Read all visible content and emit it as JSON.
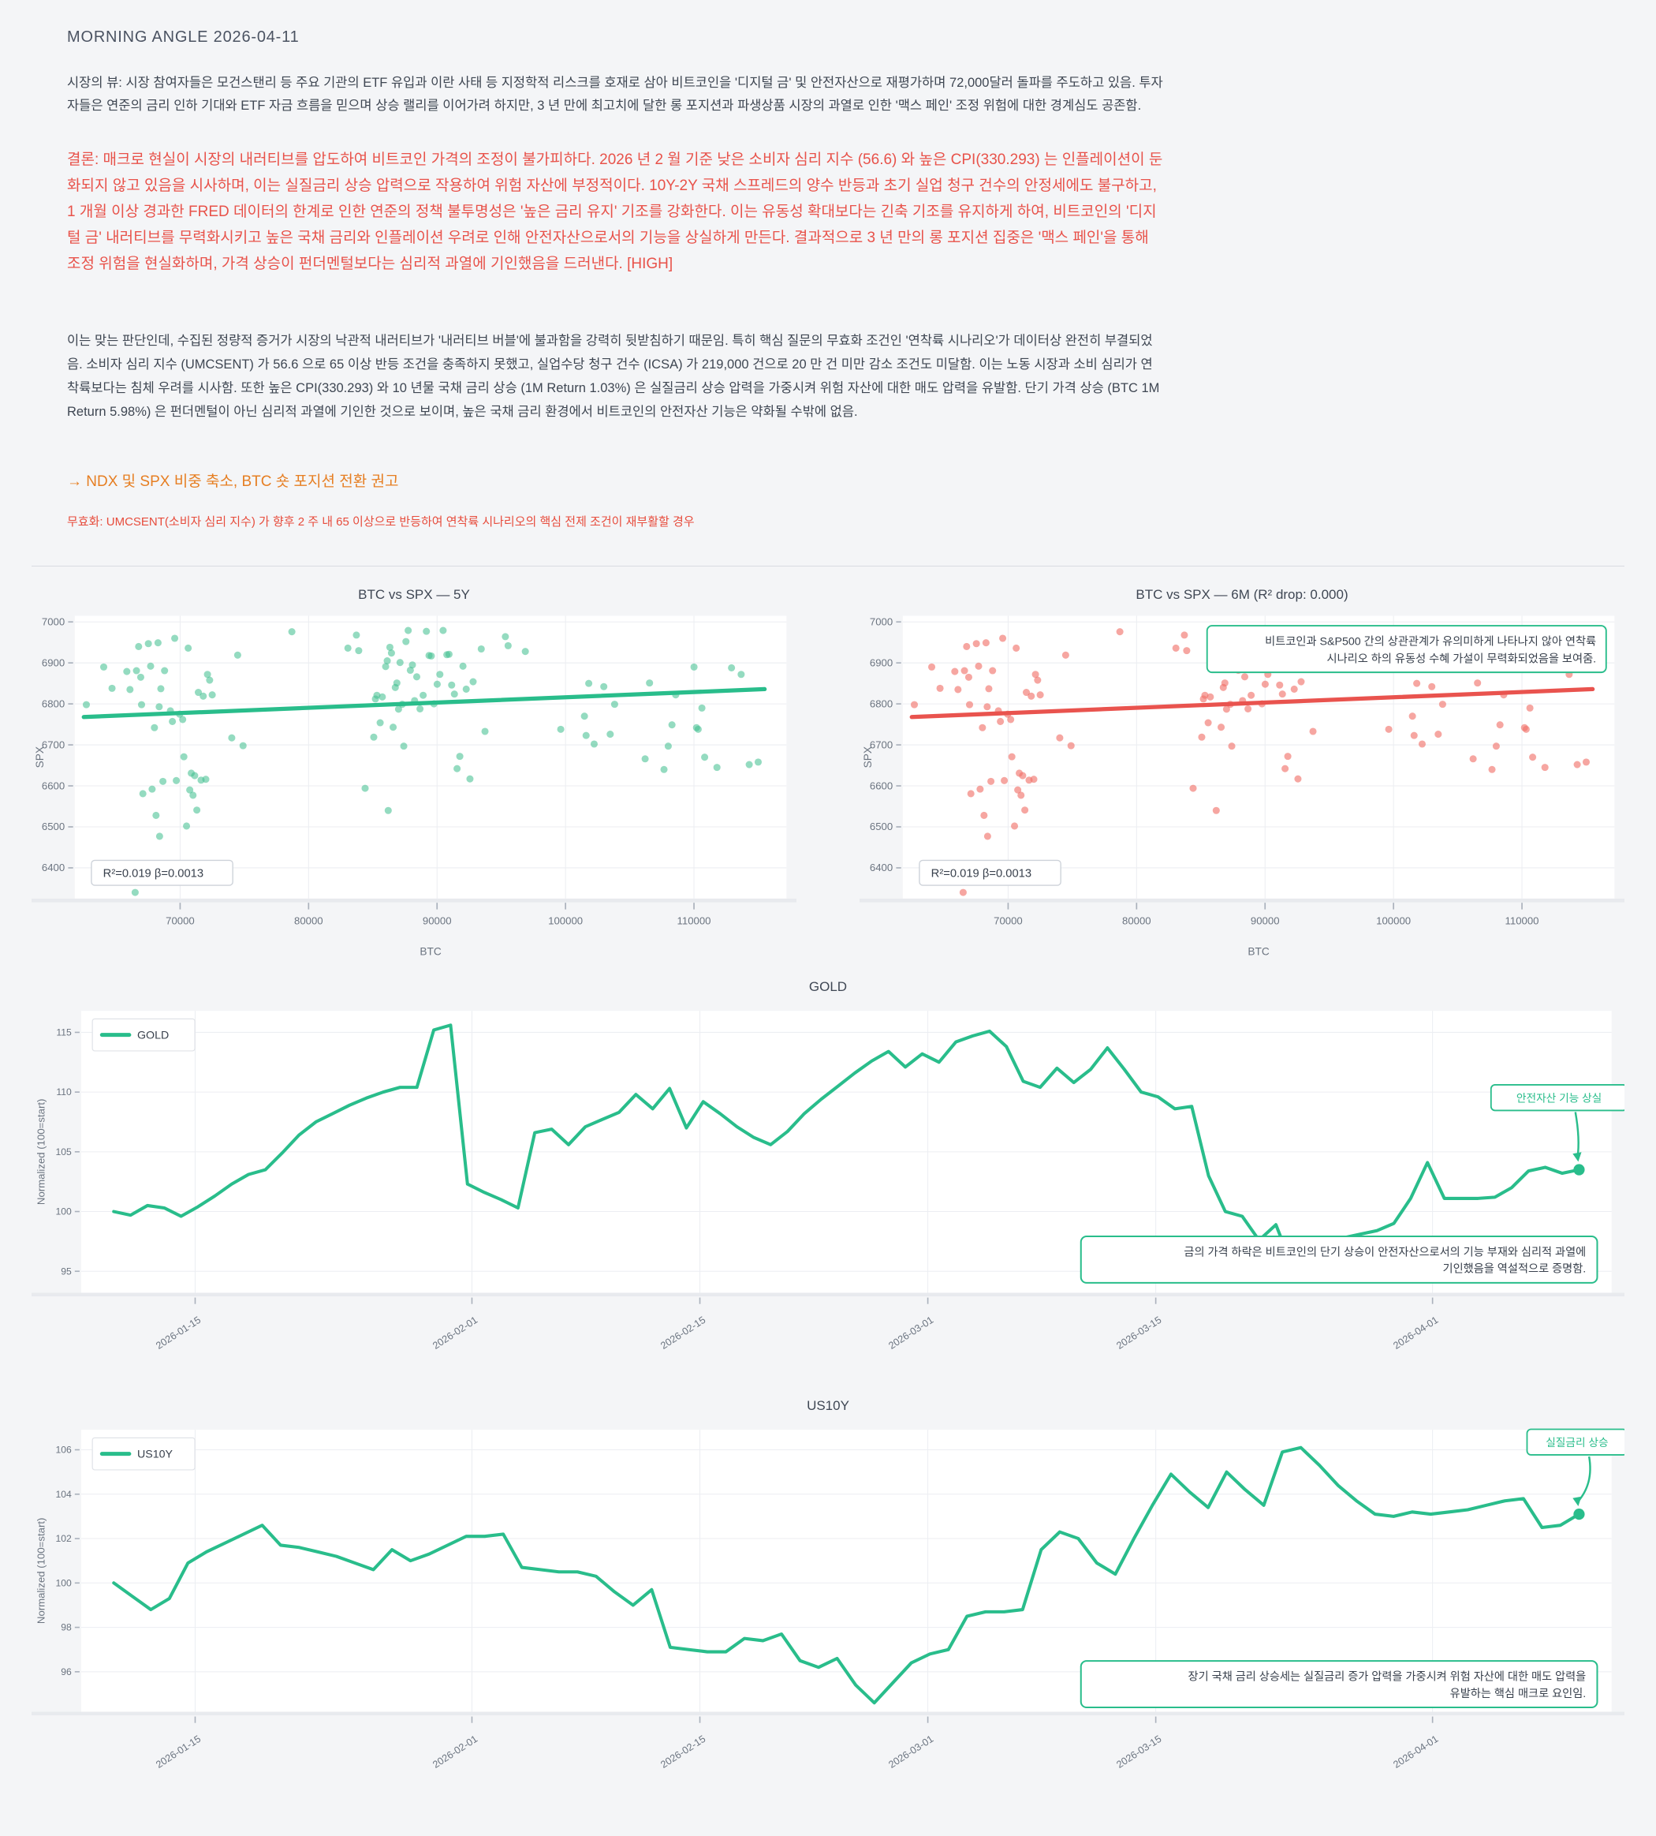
{
  "header": {
    "title": "MORNING ANGLE  2026-04-11"
  },
  "report": {
    "market_view": "시장의 뷰: 시장 참여자들은 모건스탠리 등 주요 기관의 ETF 유입과 이란 사태 등 지정학적 리스크를 호재로 삼아 비트코인을 '디지털 금' 및 안전자산으로 재평가하며 72,000달러 돌파를 주도하고 있음. 투자자들은 연준의 금리 인하 기대와 ETF 자금 흐름을 믿으며 상승 랠리를 이어가려 하지만, 3 년 만에 최고치에 달한 롱 포지션과 파생상품 시장의 과열로 인한 '맥스 페인' 조정 위험에 대한 경계심도 공존함.",
    "conclusion": "결론: 매크로 현실이 시장의 내러티브를 압도하여 비트코인 가격의 조정이 불가피하다. 2026 년 2 월 기준 낮은 소비자 심리 지수 (56.6) 와 높은 CPI(330.293) 는 인플레이션이 둔화되지 않고 있음을 시사하며, 이는 실질금리 상승 압력으로 작용하여 위험 자산에 부정적이다. 10Y-2Y 국채 스프레드의 양수 반등과 초기 실업 청구 건수의 안정세에도 불구하고, 1 개월 이상 경과한 FRED 데이터의 한계로 인한 연준의 정책 불투명성은 '높은 금리 유지' 기조를 강화한다. 이는 유동성 확대보다는 긴축 기조를 유지하게 하여, 비트코인의 '디지털 금' 내러티브를 무력화시키고 높은 국채 금리와 인플레이션 우려로 인해 안전자산으로서의 기능을 상실하게 만든다. 결과적으로 3 년 만의 롱 포지션 집중은 '맥스 페인'을 통해 조정 위험을 현실화하며, 가격 상승이 펀더멘털보다는 심리적 과열에 기인했음을 드러낸다.  [HIGH]",
    "analysis": "이는 맞는 판단인데, 수집된 정량적 증거가 시장의 낙관적 내러티브가 '내러티브 버블'에 불과함을 강력히 뒷받침하기 때문임. 특히 핵심 질문의 무효화 조건인 '연착륙 시나리오'가 데이터상 완전히 부결되었음. 소비자 심리 지수 (UMCSENT) 가 56.6 으로 65 이상 반등 조건을 충족하지 못했고, 실업수당 청구 건수 (ICSA) 가 219,000 건으로 20 만 건 미만 감소 조건도 미달함. 이는 노동 시장과 소비 심리가 연착륙보다는 침체 우려를 시사함. 또한 높은 CPI(330.293) 와 10 년물 국채 금리 상승 (1M Return 1.03%) 은 실질금리 상승 압력을 가중시켜 위험 자산에 대한 매도 압력을 유발함. 단기 가격 상승 (BTC 1M Return 5.98%) 은 펀더멘털이 아닌 심리적 과열에 기인한 것으로 보이며, 높은 국채 금리 환경에서 비트코인의 안전자산 기능은 약화될 수밖에 없음.",
    "recommendation": "→ NDX 및 SPX 비중 축소, BTC 숏 포지션 전환 권고",
    "invalidation": "무효화: UMCSENT(소비자 심리 지수) 가 향후 2 주 내 65 이상으로 반등하여 연착륙 시나리오의 핵심 전제 조건이 재부활할 경우"
  },
  "colors": {
    "green": "#29bd8b",
    "green_fill": "rgba(61,189,141,0.55)",
    "red": "#e9534e",
    "red_fill": "rgba(240,112,104,0.62)",
    "grid": "#eceef2",
    "tick": "#aab1bc",
    "label": "#6b7480",
    "text": "#39414d",
    "axis_band": "#e8eaee"
  },
  "chart_data": [
    {
      "type": "scatter",
      "title": "BTC vs SPX — 5Y",
      "xlabel": "BTC",
      "ylabel": "SPX",
      "xlim": [
        61800,
        117200
      ],
      "ylim": [
        6325,
        7015
      ],
      "xticks": [
        70000,
        80000,
        90000,
        100000,
        110000
      ],
      "yticks": [
        6400,
        6500,
        6600,
        6700,
        6800,
        6900,
        7000
      ],
      "stats_label": "R²=0.019  β=0.0013",
      "series_color": "green",
      "trend": {
        "x": [
          62500,
          115500
        ],
        "y": [
          6768,
          6836
        ]
      },
      "points": [
        [
          62700,
          6798
        ],
        [
          64050,
          6890
        ],
        [
          64700,
          6838
        ],
        [
          65850,
          6879
        ],
        [
          66100,
          6835
        ],
        [
          66600,
          6881
        ],
        [
          66770,
          6940
        ],
        [
          66930,
          6865
        ],
        [
          67000,
          6798
        ],
        [
          67100,
          6581
        ],
        [
          67530,
          6947
        ],
        [
          67700,
          6892
        ],
        [
          67820,
          6592
        ],
        [
          68000,
          6742
        ],
        [
          68120,
          6528
        ],
        [
          68280,
          6949
        ],
        [
          68370,
          6793
        ],
        [
          68400,
          6477
        ],
        [
          68500,
          6837
        ],
        [
          68660,
          6611
        ],
        [
          68790,
          6881
        ],
        [
          69240,
          6783
        ],
        [
          69400,
          6757
        ],
        [
          69580,
          6960
        ],
        [
          69700,
          6613
        ],
        [
          69960,
          6775
        ],
        [
          70200,
          6762
        ],
        [
          70290,
          6671
        ],
        [
          70500,
          6502
        ],
        [
          70630,
          6936
        ],
        [
          70750,
          6590
        ],
        [
          70870,
          6631
        ],
        [
          71000,
          6577
        ],
        [
          71130,
          6625
        ],
        [
          71300,
          6541
        ],
        [
          71420,
          6828
        ],
        [
          71630,
          6614
        ],
        [
          71800,
          6819
        ],
        [
          72000,
          6616
        ],
        [
          72130,
          6872
        ],
        [
          72300,
          6858
        ],
        [
          72500,
          6822
        ],
        [
          74020,
          6717
        ],
        [
          74480,
          6919
        ],
        [
          74900,
          6698
        ],
        [
          78700,
          6976
        ],
        [
          83060,
          6936
        ],
        [
          83720,
          6968
        ],
        [
          83900,
          6930
        ],
        [
          84400,
          6594
        ],
        [
          85070,
          6719
        ],
        [
          85200,
          6812
        ],
        [
          85320,
          6821
        ],
        [
          85570,
          6754
        ],
        [
          85740,
          6817
        ],
        [
          86000,
          6891
        ],
        [
          86120,
          6905
        ],
        [
          86200,
          6540
        ],
        [
          86330,
          6938
        ],
        [
          86450,
          6924
        ],
        [
          86580,
          6743
        ],
        [
          86750,
          6840
        ],
        [
          86870,
          6851
        ],
        [
          87000,
          6787
        ],
        [
          87120,
          6901
        ],
        [
          87290,
          6799
        ],
        [
          87410,
          6697
        ],
        [
          87580,
          6952
        ],
        [
          87750,
          6979
        ],
        [
          87920,
          6882
        ],
        [
          88080,
          6895
        ],
        [
          88250,
          6808
        ],
        [
          88420,
          6866
        ],
        [
          88670,
          6788
        ],
        [
          88920,
          6821
        ],
        [
          89170,
          6977
        ],
        [
          89380,
          6918
        ],
        [
          89550,
          6917
        ],
        [
          89760,
          6800
        ],
        [
          90010,
          6848
        ],
        [
          90220,
          6872
        ],
        [
          90470,
          6979
        ],
        [
          90760,
          6920
        ],
        [
          90930,
          6921
        ],
        [
          91140,
          6846
        ],
        [
          91350,
          6824
        ],
        [
          91560,
          6642
        ],
        [
          91770,
          6672
        ],
        [
          92020,
          6892
        ],
        [
          92270,
          6836
        ],
        [
          92560,
          6617
        ],
        [
          92810,
          6854
        ],
        [
          93440,
          6934
        ],
        [
          93730,
          6733
        ],
        [
          95320,
          6964
        ],
        [
          95530,
          6942
        ],
        [
          96870,
          6928
        ],
        [
          99630,
          6738
        ],
        [
          101470,
          6770
        ],
        [
          101600,
          6723
        ],
        [
          101810,
          6850
        ],
        [
          102230,
          6702
        ],
        [
          102980,
          6842
        ],
        [
          103480,
          6726
        ],
        [
          103820,
          6799
        ],
        [
          106200,
          6666
        ],
        [
          106540,
          6851
        ],
        [
          107670,
          6640
        ],
        [
          108000,
          6697
        ],
        [
          108290,
          6749
        ],
        [
          108580,
          6822
        ],
        [
          110000,
          6890
        ],
        [
          110200,
          6742
        ],
        [
          110330,
          6738
        ],
        [
          110620,
          6790
        ],
        [
          110830,
          6670
        ],
        [
          111790,
          6645
        ],
        [
          112920,
          6888
        ],
        [
          113670,
          6872
        ],
        [
          114300,
          6652
        ],
        [
          115000,
          6658
        ],
        [
          66500,
          6340
        ]
      ]
    },
    {
      "type": "scatter",
      "title": "BTC vs SPX — 6M (R² drop: 0.000)",
      "xlabel": "BTC",
      "ylabel": "SPX",
      "xlim": [
        61800,
        117200
      ],
      "ylim": [
        6325,
        7015
      ],
      "xticks": [
        70000,
        80000,
        90000,
        100000,
        110000
      ],
      "yticks": [
        6400,
        6500,
        6600,
        6700,
        6800,
        6900,
        7000
      ],
      "stats_label": "R²=0.019  β=0.0013",
      "series_color": "red",
      "trend": {
        "x": [
          62500,
          115500
        ],
        "y": [
          6768,
          6836
        ]
      },
      "points_ref": 0,
      "note": {
        "lines": [
          "비트코인과 S&P500 간의 상관관계가 유의미하게 나타나지 않아 연착륙",
          "시나리오 하의 유동성 수혜 가설이 무력화되었음을 보여줌."
        ]
      }
    },
    {
      "type": "line",
      "title": "GOLD",
      "legend": "GOLD",
      "ylabel": "Normalized (100=start)",
      "ylim": [
        93.2,
        116.8
      ],
      "yticks": [
        95,
        100,
        105,
        110,
        115
      ],
      "x_range_days": [
        0,
        94
      ],
      "series_day_span": [
        2,
        92
      ],
      "xticks": [
        {
          "day": 7,
          "label": "2026-01-15"
        },
        {
          "day": 24,
          "label": "2026-02-01"
        },
        {
          "day": 38,
          "label": "2026-02-15"
        },
        {
          "day": 52,
          "label": "2026-03-01"
        },
        {
          "day": 66,
          "label": "2026-03-15"
        },
        {
          "day": 83,
          "label": "2026-04-01"
        }
      ],
      "values": [
        100.0,
        99.7,
        100.5,
        100.3,
        99.6,
        100.4,
        101.3,
        102.3,
        103.1,
        103.5,
        104.9,
        106.4,
        107.5,
        108.2,
        108.9,
        109.5,
        110.0,
        110.4,
        110.4,
        115.2,
        115.6,
        102.3,
        101.6,
        101.0,
        100.3,
        106.6,
        106.9,
        105.6,
        107.1,
        107.7,
        108.3,
        109.8,
        108.6,
        110.3,
        107.0,
        109.2,
        108.2,
        107.1,
        106.2,
        105.6,
        106.7,
        108.2,
        109.4,
        110.5,
        111.6,
        112.6,
        113.4,
        112.1,
        113.2,
        112.5,
        114.2,
        114.7,
        115.1,
        113.8,
        110.9,
        110.4,
        112.0,
        110.8,
        111.9,
        113.7,
        111.9,
        110.0,
        109.6,
        108.6,
        108.8,
        103.0,
        100.0,
        99.6,
        97.6,
        98.9,
        95.3,
        97.5,
        97.6,
        97.8,
        98.1,
        98.4,
        99.0,
        101.1,
        104.1,
        101.1,
        101.1,
        101.1,
        101.2,
        102.0,
        103.4,
        103.7,
        103.2,
        103.5
      ],
      "end_label": "안전자산 기능 상실",
      "note": {
        "lines": [
          "금의 가격 하락은 비트코인의 단기 상승이 안전자산으로서의 기능 부재와 심리적 과열에",
          "기인했음을 역설적으로 증명함."
        ]
      },
      "note_frac": 0.8
    },
    {
      "type": "line",
      "title": "US10Y",
      "legend": "US10Y",
      "ylabel": "Normalized (100=start)",
      "ylim": [
        94.2,
        106.9
      ],
      "yticks": [
        96,
        98,
        100,
        102,
        104,
        106
      ],
      "x_range_days": [
        0,
        94
      ],
      "series_day_span": [
        2,
        92
      ],
      "xticks": [
        {
          "day": 7,
          "label": "2026-01-15"
        },
        {
          "day": 24,
          "label": "2026-02-01"
        },
        {
          "day": 38,
          "label": "2026-02-15"
        },
        {
          "day": 52,
          "label": "2026-03-01"
        },
        {
          "day": 66,
          "label": "2026-03-15"
        },
        {
          "day": 83,
          "label": "2026-04-01"
        }
      ],
      "values": [
        100.0,
        99.4,
        98.8,
        99.3,
        100.9,
        101.4,
        101.8,
        102.2,
        102.6,
        101.7,
        101.6,
        101.4,
        101.2,
        100.9,
        100.6,
        101.5,
        101.0,
        101.3,
        101.7,
        102.1,
        102.1,
        102.2,
        100.7,
        100.6,
        100.5,
        100.5,
        100.3,
        99.6,
        99.0,
        99.7,
        97.1,
        97.0,
        96.9,
        96.9,
        97.5,
        97.4,
        97.7,
        96.5,
        96.2,
        96.6,
        95.4,
        94.6,
        95.5,
        96.4,
        96.8,
        97.0,
        98.5,
        98.7,
        98.7,
        98.8,
        101.5,
        102.3,
        102.0,
        100.9,
        100.4,
        102.0,
        103.5,
        104.9,
        104.1,
        103.4,
        105.0,
        104.2,
        103.5,
        105.9,
        106.1,
        105.3,
        104.4,
        103.7,
        103.1,
        103.0,
        103.2,
        103.1,
        103.2,
        103.3,
        103.5,
        103.7,
        103.8,
        102.5,
        102.6,
        103.1
      ],
      "end_label": "실질금리 상승",
      "note": {
        "lines": [
          "장기 국채 금리 상승세는 실질금리 증가 압력을 가중시켜 위험 자산에 대한 매도 압력을",
          "유발하는 핵심 매크로 요인임."
        ]
      },
      "note_frac": 0.82
    }
  ]
}
